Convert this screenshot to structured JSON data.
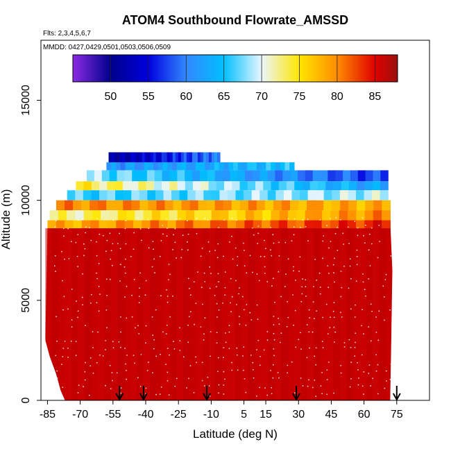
{
  "chart_data": {
    "type": "heatmap",
    "title": "ATOM4 Southbound Flowrate_AMSSD",
    "subtitle_flights": "Flts: 2,3,4,5,6,7",
    "subtitle_dates": "MMDD: 0427,0429,0501,0503,0506,0509",
    "xlabel": "Latitude (deg N)",
    "ylabel": "Altitude (m)",
    "xlim": [
      -88,
      90
    ],
    "ylim": [
      0,
      18000
    ],
    "x_ticks": [
      -85,
      -70,
      -55,
      -40,
      -25,
      -10,
      5,
      15,
      30,
      45,
      60,
      75
    ],
    "x_tick_labels": [
      "-85",
      "-70",
      "-55",
      "-40",
      "-25",
      "-10",
      "5",
      "15",
      "30",
      "45",
      "60",
      "75"
    ],
    "y_ticks": [
      0,
      5000,
      10000,
      15000
    ],
    "y_tick_labels": [
      "0",
      "5000",
      "10000",
      "15000"
    ],
    "colorbar": {
      "range": [
        45,
        88
      ],
      "ticks": [
        50,
        55,
        60,
        65,
        70,
        75,
        80,
        85
      ],
      "tick_labels": [
        "50",
        "55",
        "60",
        "65",
        "70",
        "75",
        "80",
        "85"
      ]
    },
    "color_scale": [
      {
        "v": 45,
        "c": "#8a2be2"
      },
      {
        "v": 50,
        "c": "#00008b"
      },
      {
        "v": 55,
        "c": "#0000dd"
      },
      {
        "v": 60,
        "c": "#3388ff"
      },
      {
        "v": 65,
        "c": "#00bfff"
      },
      {
        "v": 70,
        "c": "#eaf6ff"
      },
      {
        "v": 75,
        "c": "#ffe600"
      },
      {
        "v": 80,
        "c": "#ff8c00"
      },
      {
        "v": 85,
        "c": "#e00000"
      },
      {
        "v": 88,
        "c": "#9b1010"
      }
    ],
    "field_color": "#c80000",
    "layers": [
      {
        "bottom": 11800,
        "top": 12400,
        "lat0": -57,
        "lat1": -6,
        "v0": 51,
        "v1": 60
      },
      {
        "bottom": 11500,
        "top": 11900,
        "lat0": -58,
        "lat1": 28,
        "v0": 61,
        "v1": 65
      },
      {
        "bottom": 10950,
        "top": 11500,
        "lat0": -67,
        "lat1": 71,
        "v0": 68,
        "v1": 57
      },
      {
        "bottom": 10500,
        "top": 10950,
        "lat0": -72,
        "lat1": 71,
        "v0": 74,
        "v1": 62
      },
      {
        "bottom": 10000,
        "top": 10500,
        "lat0": -76,
        "lat1": 71,
        "v0": 66,
        "v1": 69
      },
      {
        "bottom": 9500,
        "top": 10000,
        "lat0": -81,
        "lat1": 72,
        "v0": 80,
        "v1": 78
      },
      {
        "bottom": 9000,
        "top": 9500,
        "lat0": -84,
        "lat1": 72,
        "v0": 72,
        "v1": 80
      },
      {
        "bottom": 8600,
        "top": 9000,
        "lat0": -85,
        "lat1": 72,
        "v0": 78,
        "v1": 84
      }
    ],
    "field_outline": [
      [
        -85,
        8600
      ],
      [
        -86,
        3000
      ],
      [
        -84,
        2200
      ],
      [
        -81,
        1300
      ],
      [
        -79,
        500
      ],
      [
        -77,
        0
      ],
      [
        72,
        0
      ],
      [
        72.5,
        3000
      ],
      [
        73,
        6500
      ],
      [
        72,
        9000
      ],
      [
        -85,
        8600
      ]
    ],
    "descent_markers_lat": [
      -52,
      -41,
      -12,
      29,
      75
    ]
  }
}
